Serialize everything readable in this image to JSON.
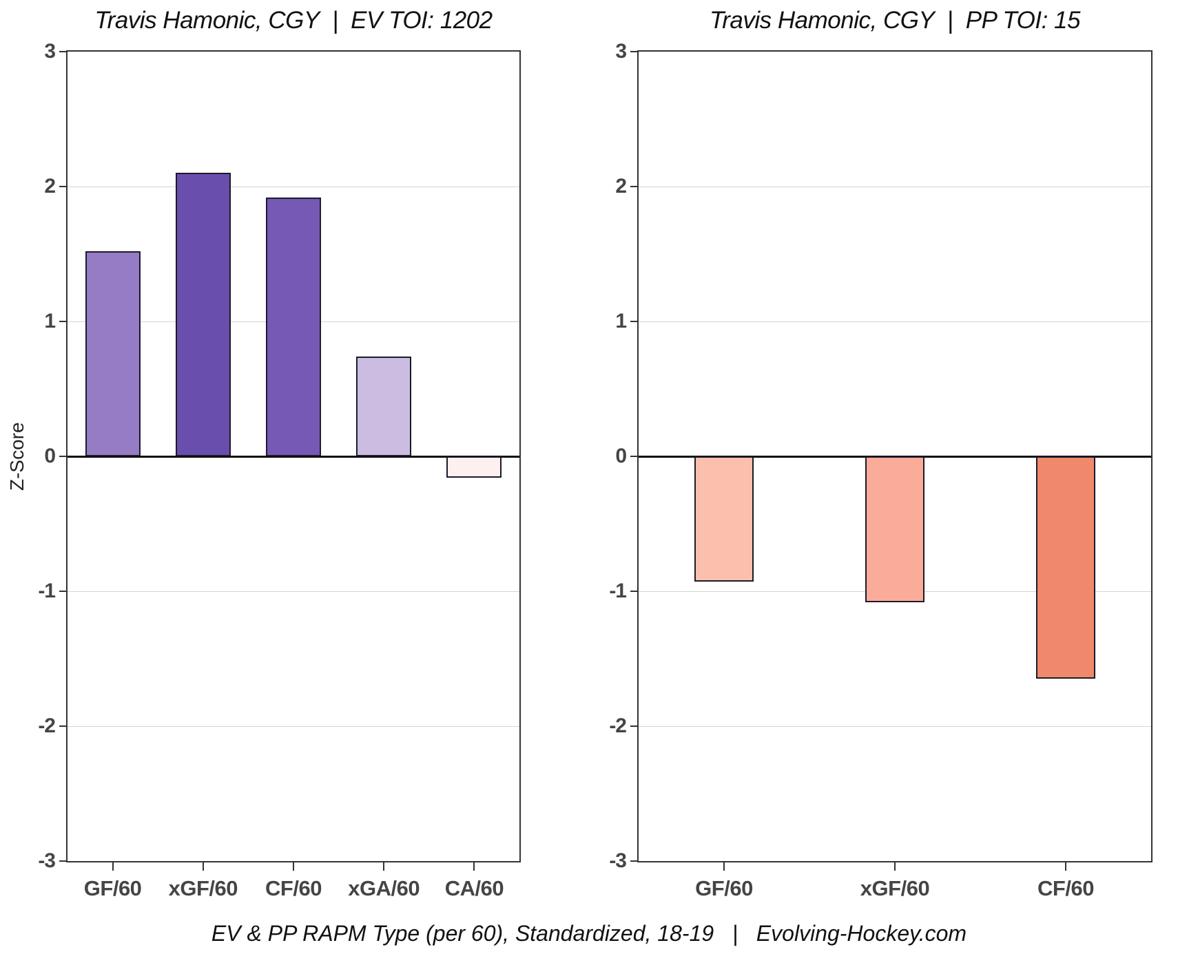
{
  "caption": "EV & PP RAPM Type (per 60), Standardized, 18-19   |   Evolving-Hockey.com",
  "y_axis_title": "Z-Score",
  "chart_data": [
    {
      "type": "bar",
      "title": "Travis Hamonic, CGY  |  EV TOI: 1202",
      "categories": [
        "GF/60",
        "xGF/60",
        "CF/60",
        "xGA/60",
        "CA/60"
      ],
      "values": [
        1.52,
        2.1,
        1.92,
        0.74,
        -0.16
      ],
      "bar_colors": [
        "#957cc4",
        "#6a4ead",
        "#7559b5",
        "#cbbde2",
        "#fdf0ee"
      ],
      "bar_outline_color": "#1b1b2b",
      "xlabel": "",
      "ylabel": "Z-Score",
      "ylim": [
        -3,
        3
      ],
      "yticks": [
        3,
        2,
        1,
        0,
        -1,
        -2,
        -3
      ],
      "grid": "horizontal-major",
      "legend": "none"
    },
    {
      "type": "bar",
      "title": "Travis Hamonic, CGY  |  PP TOI: 15",
      "categories": [
        "GF/60",
        "xGF/60",
        "CF/60"
      ],
      "values": [
        -0.93,
        -1.08,
        -1.65
      ],
      "bar_colors": [
        "#fbc0ad",
        "#fbac99",
        "#f0886b"
      ],
      "bar_outline_color": "#1b1b2b",
      "xlabel": "",
      "ylabel": "Z-Score",
      "ylim": [
        -3,
        3
      ],
      "yticks": [
        3,
        2,
        1,
        0,
        -1,
        -2,
        -3
      ],
      "grid": "horizontal-major",
      "legend": "none"
    }
  ]
}
